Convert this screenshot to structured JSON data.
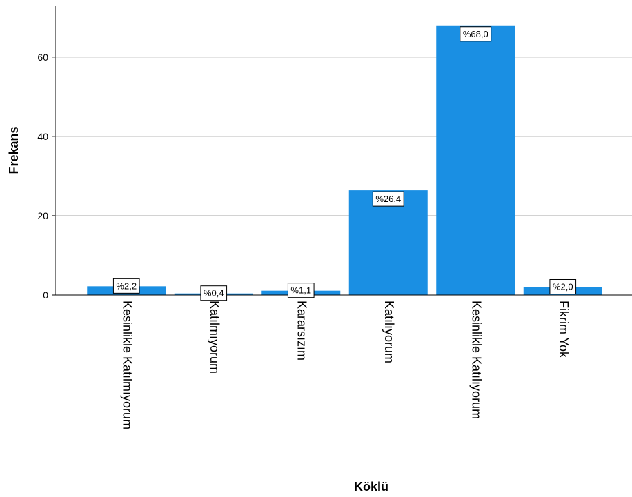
{
  "chart_data": {
    "type": "bar",
    "title": "",
    "xlabel": "Köklü",
    "ylabel": "Frekans",
    "categories": [
      "Kesinlikle Katılmıyorum",
      "Katılmıyorum",
      "Kararsızım",
      "Katılıyorum",
      "Kesinlikle Katılıyorum",
      "Fikrim Yok"
    ],
    "values": [
      2.2,
      0.4,
      1.1,
      26.4,
      68.0,
      2.0
    ],
    "data_labels": [
      "%2,2",
      "%0,4",
      "%1,1",
      "%26,4",
      "%68,0",
      "%2,0"
    ],
    "yticks": [
      0,
      20,
      40,
      60
    ],
    "ylim": [
      0,
      73
    ],
    "grid": true,
    "bar_color": "#1a8fe3",
    "legend": "none"
  }
}
